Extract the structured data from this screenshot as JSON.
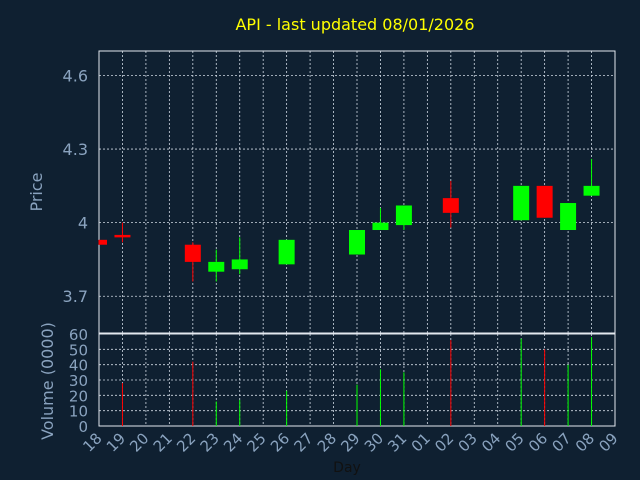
{
  "chart_data": {
    "type": "candlestick",
    "title": "API - last updated 08/01/2026",
    "colors": {
      "background": "#0f2031",
      "up": "#00ff00",
      "down": "#ff0000",
      "grid": "#cfd8e3",
      "text": "#8aa3bf",
      "title": "#ffff00"
    },
    "price_panel": {
      "ylabel": "Price",
      "ylim": [
        3.55,
        4.7
      ],
      "yticks": [
        3.7,
        4.0,
        4.3,
        4.6
      ],
      "ytick_labels": [
        "3.7",
        "4",
        "4.3",
        "4.6"
      ]
    },
    "volume_panel": {
      "ylabel": "Volume (0000)",
      "ylim": [
        0,
        60
      ],
      "yticks": [
        0,
        10,
        20,
        30,
        40,
        50,
        60
      ],
      "ytick_labels": [
        "0",
        "10",
        "20",
        "30",
        "40",
        "50",
        "60"
      ]
    },
    "xlabel": "Day",
    "x_labels": [
      "18",
      "19",
      "20",
      "21",
      "22",
      "23",
      "24",
      "25",
      "26",
      "27",
      "28",
      "29",
      "30",
      "31",
      "01",
      "02",
      "03",
      "04",
      "05",
      "06",
      "07",
      "08",
      "09"
    ],
    "candles": [
      {
        "x": "18",
        "open": 3.93,
        "close": 3.91,
        "high": 3.93,
        "low": 3.91,
        "volume": 0
      },
      {
        "x": "19",
        "open": 3.95,
        "close": 3.94,
        "high": 4.0,
        "low": 3.92,
        "volume": 28
      },
      {
        "x": "22",
        "open": 3.91,
        "close": 3.84,
        "high": 3.92,
        "low": 3.76,
        "volume": 42
      },
      {
        "x": "23",
        "open": 3.8,
        "close": 3.84,
        "high": 3.89,
        "low": 3.76,
        "volume": 16
      },
      {
        "x": "24",
        "open": 3.81,
        "close": 3.85,
        "high": 3.94,
        "low": 3.79,
        "volume": 17
      },
      {
        "x": "26",
        "open": 3.83,
        "close": 3.93,
        "high": 3.93,
        "low": 3.83,
        "volume": 23
      },
      {
        "x": "29",
        "open": 3.87,
        "close": 3.97,
        "high": 3.97,
        "low": 3.87,
        "volume": 27
      },
      {
        "x": "30",
        "open": 3.97,
        "close": 4.0,
        "high": 4.06,
        "low": 3.97,
        "volume": 37
      },
      {
        "x": "31",
        "open": 3.99,
        "close": 4.07,
        "high": 4.07,
        "low": 3.97,
        "volume": 35
      },
      {
        "x": "02",
        "open": 4.1,
        "close": 4.04,
        "high": 4.17,
        "low": 3.98,
        "volume": 56
      },
      {
        "x": "05",
        "open": 4.01,
        "close": 4.15,
        "high": 4.15,
        "low": 4.01,
        "volume": 57
      },
      {
        "x": "06",
        "open": 4.15,
        "close": 4.02,
        "high": 4.15,
        "low": 4.02,
        "volume": 50
      },
      {
        "x": "07",
        "open": 3.97,
        "close": 4.08,
        "high": 4.08,
        "low": 3.97,
        "volume": 40
      },
      {
        "x": "08",
        "open": 4.11,
        "close": 4.15,
        "high": 4.26,
        "low": 4.11,
        "volume": 58
      }
    ]
  }
}
